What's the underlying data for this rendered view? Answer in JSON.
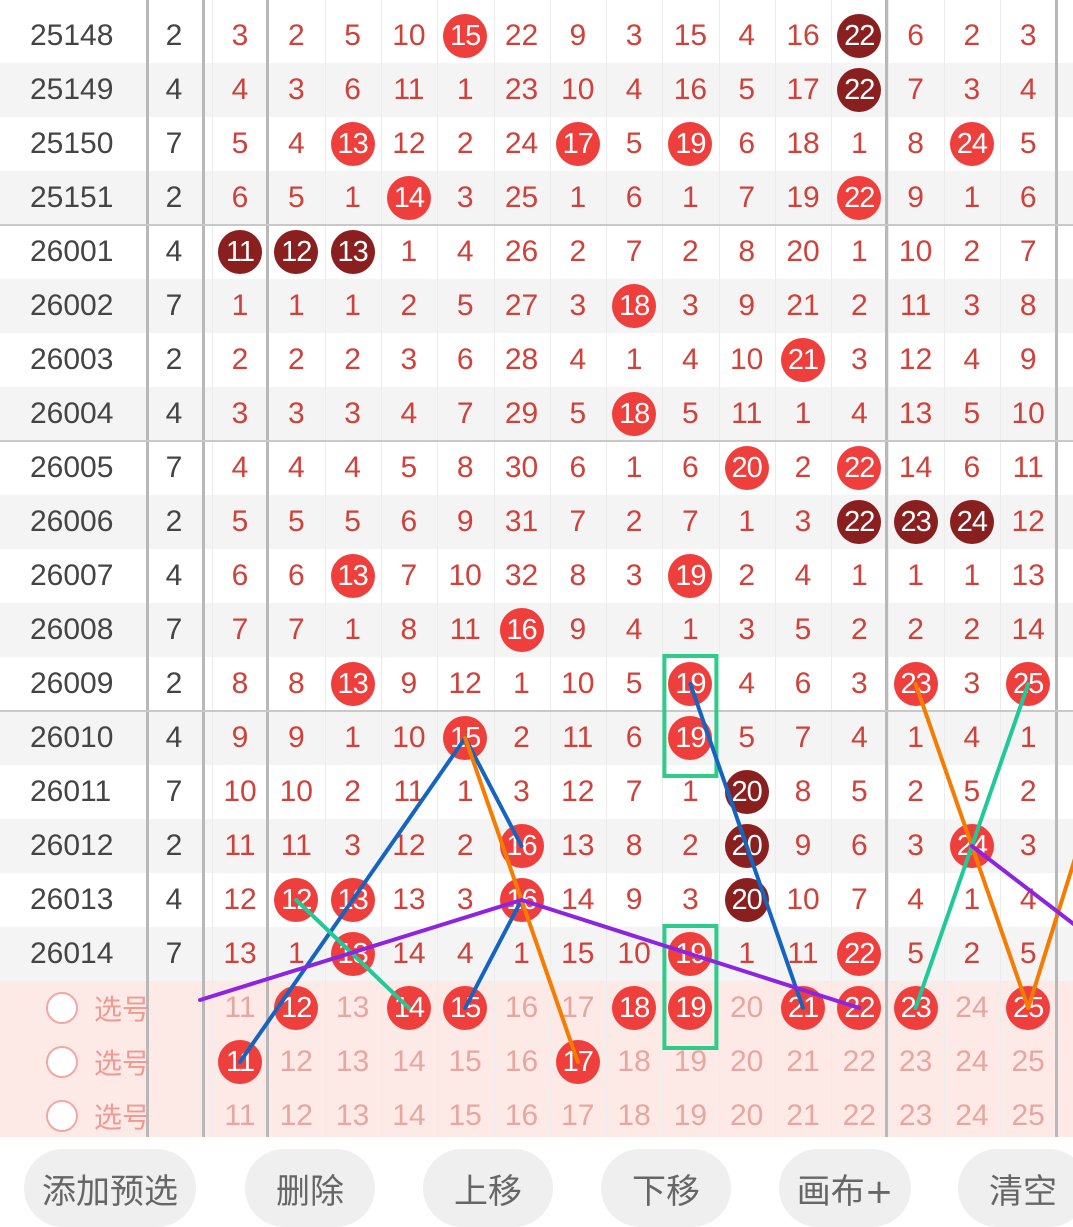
{
  "rows": [
    {
      "issue": "25148",
      "sum": "2",
      "cells": [
        {
          "v": "3"
        },
        {
          "v": "2"
        },
        {
          "v": "5"
        },
        {
          "v": "10"
        },
        {
          "v": "15",
          "b": "red"
        },
        {
          "v": "22"
        },
        {
          "v": "9"
        },
        {
          "v": "3"
        },
        {
          "v": "15"
        },
        {
          "v": "4"
        },
        {
          "v": "16"
        },
        {
          "v": "22",
          "b": "dark"
        },
        {
          "v": "6"
        },
        {
          "v": "2"
        },
        {
          "v": "3"
        }
      ]
    },
    {
      "issue": "25149",
      "sum": "4",
      "cells": [
        {
          "v": "4"
        },
        {
          "v": "3"
        },
        {
          "v": "6"
        },
        {
          "v": "11"
        },
        {
          "v": "1"
        },
        {
          "v": "23"
        },
        {
          "v": "10"
        },
        {
          "v": "4"
        },
        {
          "v": "16"
        },
        {
          "v": "5"
        },
        {
          "v": "17"
        },
        {
          "v": "22",
          "b": "dark"
        },
        {
          "v": "7"
        },
        {
          "v": "3"
        },
        {
          "v": "4"
        }
      ]
    },
    {
      "issue": "25150",
      "sum": "7",
      "cells": [
        {
          "v": "5"
        },
        {
          "v": "4"
        },
        {
          "v": "13",
          "b": "red"
        },
        {
          "v": "12"
        },
        {
          "v": "2"
        },
        {
          "v": "24"
        },
        {
          "v": "17",
          "b": "red"
        },
        {
          "v": "5"
        },
        {
          "v": "19",
          "b": "red"
        },
        {
          "v": "6"
        },
        {
          "v": "18"
        },
        {
          "v": "1"
        },
        {
          "v": "8"
        },
        {
          "v": "24",
          "b": "red"
        },
        {
          "v": "5"
        }
      ]
    },
    {
      "issue": "25151",
      "sum": "2",
      "cells": [
        {
          "v": "6"
        },
        {
          "v": "5"
        },
        {
          "v": "1"
        },
        {
          "v": "14",
          "b": "red"
        },
        {
          "v": "3"
        },
        {
          "v": "25"
        },
        {
          "v": "1"
        },
        {
          "v": "6"
        },
        {
          "v": "1"
        },
        {
          "v": "7"
        },
        {
          "v": "19"
        },
        {
          "v": "22",
          "b": "red"
        },
        {
          "v": "9"
        },
        {
          "v": "1"
        },
        {
          "v": "6"
        }
      ]
    },
    {
      "issue": "26001",
      "sum": "4",
      "cells": [
        {
          "v": "11",
          "b": "dark"
        },
        {
          "v": "12",
          "b": "dark"
        },
        {
          "v": "13",
          "b": "dark"
        },
        {
          "v": "1"
        },
        {
          "v": "4"
        },
        {
          "v": "26"
        },
        {
          "v": "2"
        },
        {
          "v": "7"
        },
        {
          "v": "2"
        },
        {
          "v": "8"
        },
        {
          "v": "20"
        },
        {
          "v": "1"
        },
        {
          "v": "10"
        },
        {
          "v": "2"
        },
        {
          "v": "7"
        }
      ]
    },
    {
      "issue": "26002",
      "sum": "7",
      "cells": [
        {
          "v": "1"
        },
        {
          "v": "1"
        },
        {
          "v": "1"
        },
        {
          "v": "2"
        },
        {
          "v": "5"
        },
        {
          "v": "27"
        },
        {
          "v": "3"
        },
        {
          "v": "18",
          "b": "red"
        },
        {
          "v": "3"
        },
        {
          "v": "9"
        },
        {
          "v": "21"
        },
        {
          "v": "2"
        },
        {
          "v": "11"
        },
        {
          "v": "3"
        },
        {
          "v": "8"
        }
      ]
    },
    {
      "issue": "26003",
      "sum": "2",
      "cells": [
        {
          "v": "2"
        },
        {
          "v": "2"
        },
        {
          "v": "2"
        },
        {
          "v": "3"
        },
        {
          "v": "6"
        },
        {
          "v": "28"
        },
        {
          "v": "4"
        },
        {
          "v": "1"
        },
        {
          "v": "4"
        },
        {
          "v": "10"
        },
        {
          "v": "21",
          "b": "red"
        },
        {
          "v": "3"
        },
        {
          "v": "12"
        },
        {
          "v": "4"
        },
        {
          "v": "9"
        }
      ]
    },
    {
      "issue": "26004",
      "sum": "4",
      "cells": [
        {
          "v": "3"
        },
        {
          "v": "3"
        },
        {
          "v": "3"
        },
        {
          "v": "4"
        },
        {
          "v": "7"
        },
        {
          "v": "29"
        },
        {
          "v": "5"
        },
        {
          "v": "18",
          "b": "red"
        },
        {
          "v": "5"
        },
        {
          "v": "11"
        },
        {
          "v": "1"
        },
        {
          "v": "4"
        },
        {
          "v": "13"
        },
        {
          "v": "5"
        },
        {
          "v": "10"
        }
      ]
    },
    {
      "issue": "26005",
      "sum": "7",
      "cells": [
        {
          "v": "4"
        },
        {
          "v": "4"
        },
        {
          "v": "4"
        },
        {
          "v": "5"
        },
        {
          "v": "8"
        },
        {
          "v": "30"
        },
        {
          "v": "6"
        },
        {
          "v": "1"
        },
        {
          "v": "6"
        },
        {
          "v": "20",
          "b": "red"
        },
        {
          "v": "2"
        },
        {
          "v": "22",
          "b": "red"
        },
        {
          "v": "14"
        },
        {
          "v": "6"
        },
        {
          "v": "11"
        }
      ]
    },
    {
      "issue": "26006",
      "sum": "2",
      "cells": [
        {
          "v": "5"
        },
        {
          "v": "5"
        },
        {
          "v": "5"
        },
        {
          "v": "6"
        },
        {
          "v": "9"
        },
        {
          "v": "31"
        },
        {
          "v": "7"
        },
        {
          "v": "2"
        },
        {
          "v": "7"
        },
        {
          "v": "1"
        },
        {
          "v": "3"
        },
        {
          "v": "22",
          "b": "dark"
        },
        {
          "v": "23",
          "b": "dark"
        },
        {
          "v": "24",
          "b": "dark"
        },
        {
          "v": "12"
        }
      ]
    },
    {
      "issue": "26007",
      "sum": "4",
      "cells": [
        {
          "v": "6"
        },
        {
          "v": "6"
        },
        {
          "v": "13",
          "b": "red"
        },
        {
          "v": "7"
        },
        {
          "v": "10"
        },
        {
          "v": "32"
        },
        {
          "v": "8"
        },
        {
          "v": "3"
        },
        {
          "v": "19",
          "b": "red"
        },
        {
          "v": "2"
        },
        {
          "v": "4"
        },
        {
          "v": "1"
        },
        {
          "v": "1"
        },
        {
          "v": "1"
        },
        {
          "v": "13"
        }
      ]
    },
    {
      "issue": "26008",
      "sum": "7",
      "cells": [
        {
          "v": "7"
        },
        {
          "v": "7"
        },
        {
          "v": "1"
        },
        {
          "v": "8"
        },
        {
          "v": "11"
        },
        {
          "v": "16",
          "b": "red"
        },
        {
          "v": "9"
        },
        {
          "v": "4"
        },
        {
          "v": "1"
        },
        {
          "v": "3"
        },
        {
          "v": "5"
        },
        {
          "v": "2"
        },
        {
          "v": "2"
        },
        {
          "v": "2"
        },
        {
          "v": "14"
        }
      ]
    },
    {
      "issue": "26009",
      "sum": "2",
      "cells": [
        {
          "v": "8"
        },
        {
          "v": "8"
        },
        {
          "v": "13",
          "b": "red"
        },
        {
          "v": "9"
        },
        {
          "v": "12"
        },
        {
          "v": "1"
        },
        {
          "v": "10"
        },
        {
          "v": "5"
        },
        {
          "v": "19",
          "b": "red"
        },
        {
          "v": "4"
        },
        {
          "v": "6"
        },
        {
          "v": "3"
        },
        {
          "v": "23",
          "b": "red"
        },
        {
          "v": "3"
        },
        {
          "v": "25",
          "b": "red"
        }
      ]
    },
    {
      "issue": "26010",
      "sum": "4",
      "cells": [
        {
          "v": "9"
        },
        {
          "v": "9"
        },
        {
          "v": "1"
        },
        {
          "v": "10"
        },
        {
          "v": "15",
          "b": "red"
        },
        {
          "v": "2"
        },
        {
          "v": "11"
        },
        {
          "v": "6"
        },
        {
          "v": "19",
          "b": "red"
        },
        {
          "v": "5"
        },
        {
          "v": "7"
        },
        {
          "v": "4"
        },
        {
          "v": "1"
        },
        {
          "v": "4"
        },
        {
          "v": "1"
        }
      ]
    },
    {
      "issue": "26011",
      "sum": "7",
      "cells": [
        {
          "v": "10"
        },
        {
          "v": "10"
        },
        {
          "v": "2"
        },
        {
          "v": "11"
        },
        {
          "v": "1"
        },
        {
          "v": "3"
        },
        {
          "v": "12"
        },
        {
          "v": "7"
        },
        {
          "v": "1"
        },
        {
          "v": "20",
          "b": "dark"
        },
        {
          "v": "8"
        },
        {
          "v": "5"
        },
        {
          "v": "2"
        },
        {
          "v": "5"
        },
        {
          "v": "2"
        }
      ]
    },
    {
      "issue": "26012",
      "sum": "2",
      "cells": [
        {
          "v": "11"
        },
        {
          "v": "11"
        },
        {
          "v": "3"
        },
        {
          "v": "12"
        },
        {
          "v": "2"
        },
        {
          "v": "16",
          "b": "red"
        },
        {
          "v": "13"
        },
        {
          "v": "8"
        },
        {
          "v": "2"
        },
        {
          "v": "20",
          "b": "dark"
        },
        {
          "v": "9"
        },
        {
          "v": "6"
        },
        {
          "v": "3"
        },
        {
          "v": "24",
          "b": "red"
        },
        {
          "v": "3"
        }
      ]
    },
    {
      "issue": "26013",
      "sum": "4",
      "cells": [
        {
          "v": "12"
        },
        {
          "v": "12",
          "b": "red"
        },
        {
          "v": "13",
          "b": "red"
        },
        {
          "v": "13"
        },
        {
          "v": "3"
        },
        {
          "v": "16",
          "b": "red"
        },
        {
          "v": "14"
        },
        {
          "v": "9"
        },
        {
          "v": "3"
        },
        {
          "v": "20",
          "b": "dark"
        },
        {
          "v": "10"
        },
        {
          "v": "7"
        },
        {
          "v": "4"
        },
        {
          "v": "1"
        },
        {
          "v": "4"
        }
      ]
    },
    {
      "issue": "26014",
      "sum": "7",
      "cells": [
        {
          "v": "13"
        },
        {
          "v": "1"
        },
        {
          "v": "13",
          "b": "red"
        },
        {
          "v": "14"
        },
        {
          "v": "4"
        },
        {
          "v": "1"
        },
        {
          "v": "15"
        },
        {
          "v": "10"
        },
        {
          "v": "19",
          "b": "red"
        },
        {
          "v": "1"
        },
        {
          "v": "11"
        },
        {
          "v": "22",
          "b": "red"
        },
        {
          "v": "5"
        },
        {
          "v": "2"
        },
        {
          "v": "5"
        }
      ]
    }
  ],
  "select_rows": [
    {
      "label": "选号",
      "cells": [
        {
          "v": "11"
        },
        {
          "v": "12",
          "b": "red"
        },
        {
          "v": "13"
        },
        {
          "v": "14",
          "b": "red"
        },
        {
          "v": "15",
          "b": "red"
        },
        {
          "v": "16"
        },
        {
          "v": "17"
        },
        {
          "v": "18",
          "b": "red"
        },
        {
          "v": "19",
          "b": "red"
        },
        {
          "v": "20"
        },
        {
          "v": "21",
          "b": "red"
        },
        {
          "v": "22",
          "b": "red"
        },
        {
          "v": "23",
          "b": "red"
        },
        {
          "v": "24"
        },
        {
          "v": "25",
          "b": "red"
        }
      ]
    },
    {
      "label": "选号",
      "cells": [
        {
          "v": "11",
          "b": "red"
        },
        {
          "v": "12"
        },
        {
          "v": "13"
        },
        {
          "v": "14"
        },
        {
          "v": "15"
        },
        {
          "v": "16"
        },
        {
          "v": "17",
          "b": "red"
        },
        {
          "v": "18"
        },
        {
          "v": "19"
        },
        {
          "v": "20"
        },
        {
          "v": "21"
        },
        {
          "v": "22"
        },
        {
          "v": "23"
        },
        {
          "v": "24"
        },
        {
          "v": "25"
        }
      ]
    },
    {
      "label": "选号",
      "cells": [
        {
          "v": "11"
        },
        {
          "v": "12"
        },
        {
          "v": "13"
        },
        {
          "v": "14"
        },
        {
          "v": "15"
        },
        {
          "v": "16"
        },
        {
          "v": "17"
        },
        {
          "v": "18"
        },
        {
          "v": "19"
        },
        {
          "v": "20"
        },
        {
          "v": "21"
        },
        {
          "v": "22"
        },
        {
          "v": "23"
        },
        {
          "v": "24"
        },
        {
          "v": "25"
        }
      ]
    }
  ],
  "toolbar": {
    "add_preselect": "添加预选",
    "delete": "删除",
    "move_up": "上移",
    "move_down": "下移",
    "canvas_plus": "画布+",
    "clear": "清空"
  },
  "colors": {
    "number_text": "#d0413a",
    "ball_red": "#ef3f3c",
    "ball_dark": "#8a1f1f",
    "line_blue": "#1565c0",
    "line_orange": "#f57c00",
    "line_green": "#20c997",
    "line_purple": "#8e24e0",
    "box_green": "#2ecc8a"
  }
}
